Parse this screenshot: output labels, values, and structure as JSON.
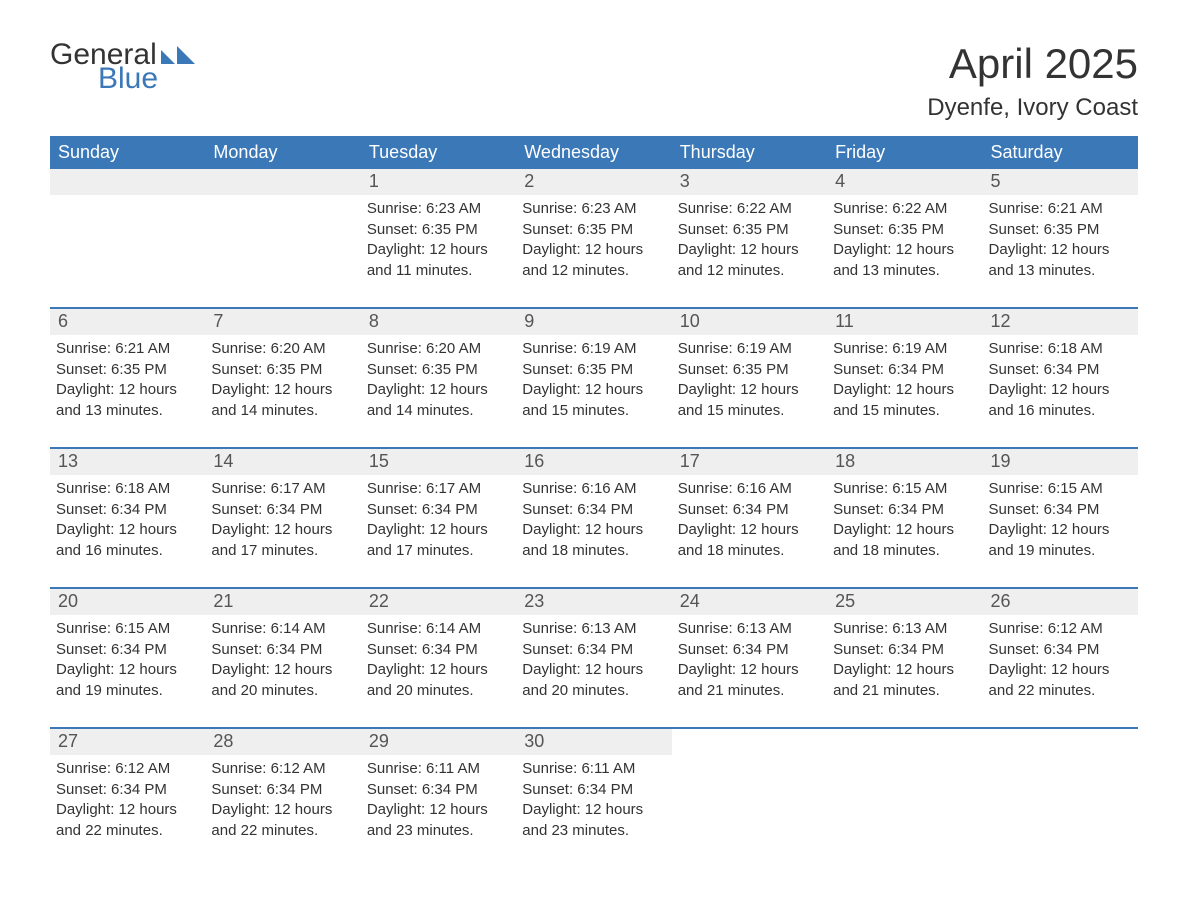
{
  "logo": {
    "line1": "General",
    "line2": "Blue",
    "flag_color": "#3b78b8"
  },
  "title": "April 2025",
  "location": "Dyenfe, Ivory Coast",
  "colors": {
    "header_bg": "#3b78b8",
    "header_text": "#ffffff",
    "daynum_bg": "#efefef",
    "daynum_text": "#555555",
    "body_text": "#333333",
    "row_border": "#3b78b8",
    "page_bg": "#ffffff"
  },
  "fonts": {
    "month_title_pt": 42,
    "location_pt": 24,
    "weekday_pt": 18,
    "daynum_pt": 18,
    "body_pt": 15
  },
  "weekdays": [
    "Sunday",
    "Monday",
    "Tuesday",
    "Wednesday",
    "Thursday",
    "Friday",
    "Saturday"
  ],
  "weeks": [
    [
      null,
      null,
      {
        "n": "1",
        "sunrise": "6:23 AM",
        "sunset": "6:35 PM",
        "daylight": "12 hours and 11 minutes."
      },
      {
        "n": "2",
        "sunrise": "6:23 AM",
        "sunset": "6:35 PM",
        "daylight": "12 hours and 12 minutes."
      },
      {
        "n": "3",
        "sunrise": "6:22 AM",
        "sunset": "6:35 PM",
        "daylight": "12 hours and 12 minutes."
      },
      {
        "n": "4",
        "sunrise": "6:22 AM",
        "sunset": "6:35 PM",
        "daylight": "12 hours and 13 minutes."
      },
      {
        "n": "5",
        "sunrise": "6:21 AM",
        "sunset": "6:35 PM",
        "daylight": "12 hours and 13 minutes."
      }
    ],
    [
      {
        "n": "6",
        "sunrise": "6:21 AM",
        "sunset": "6:35 PM",
        "daylight": "12 hours and 13 minutes."
      },
      {
        "n": "7",
        "sunrise": "6:20 AM",
        "sunset": "6:35 PM",
        "daylight": "12 hours and 14 minutes."
      },
      {
        "n": "8",
        "sunrise": "6:20 AM",
        "sunset": "6:35 PM",
        "daylight": "12 hours and 14 minutes."
      },
      {
        "n": "9",
        "sunrise": "6:19 AM",
        "sunset": "6:35 PM",
        "daylight": "12 hours and 15 minutes."
      },
      {
        "n": "10",
        "sunrise": "6:19 AM",
        "sunset": "6:35 PM",
        "daylight": "12 hours and 15 minutes."
      },
      {
        "n": "11",
        "sunrise": "6:19 AM",
        "sunset": "6:34 PM",
        "daylight": "12 hours and 15 minutes."
      },
      {
        "n": "12",
        "sunrise": "6:18 AM",
        "sunset": "6:34 PM",
        "daylight": "12 hours and 16 minutes."
      }
    ],
    [
      {
        "n": "13",
        "sunrise": "6:18 AM",
        "sunset": "6:34 PM",
        "daylight": "12 hours and 16 minutes."
      },
      {
        "n": "14",
        "sunrise": "6:17 AM",
        "sunset": "6:34 PM",
        "daylight": "12 hours and 17 minutes."
      },
      {
        "n": "15",
        "sunrise": "6:17 AM",
        "sunset": "6:34 PM",
        "daylight": "12 hours and 17 minutes."
      },
      {
        "n": "16",
        "sunrise": "6:16 AM",
        "sunset": "6:34 PM",
        "daylight": "12 hours and 18 minutes."
      },
      {
        "n": "17",
        "sunrise": "6:16 AM",
        "sunset": "6:34 PM",
        "daylight": "12 hours and 18 minutes."
      },
      {
        "n": "18",
        "sunrise": "6:15 AM",
        "sunset": "6:34 PM",
        "daylight": "12 hours and 18 minutes."
      },
      {
        "n": "19",
        "sunrise": "6:15 AM",
        "sunset": "6:34 PM",
        "daylight": "12 hours and 19 minutes."
      }
    ],
    [
      {
        "n": "20",
        "sunrise": "6:15 AM",
        "sunset": "6:34 PM",
        "daylight": "12 hours and 19 minutes."
      },
      {
        "n": "21",
        "sunrise": "6:14 AM",
        "sunset": "6:34 PM",
        "daylight": "12 hours and 20 minutes."
      },
      {
        "n": "22",
        "sunrise": "6:14 AM",
        "sunset": "6:34 PM",
        "daylight": "12 hours and 20 minutes."
      },
      {
        "n": "23",
        "sunrise": "6:13 AM",
        "sunset": "6:34 PM",
        "daylight": "12 hours and 20 minutes."
      },
      {
        "n": "24",
        "sunrise": "6:13 AM",
        "sunset": "6:34 PM",
        "daylight": "12 hours and 21 minutes."
      },
      {
        "n": "25",
        "sunrise": "6:13 AM",
        "sunset": "6:34 PM",
        "daylight": "12 hours and 21 minutes."
      },
      {
        "n": "26",
        "sunrise": "6:12 AM",
        "sunset": "6:34 PM",
        "daylight": "12 hours and 22 minutes."
      }
    ],
    [
      {
        "n": "27",
        "sunrise": "6:12 AM",
        "sunset": "6:34 PM",
        "daylight": "12 hours and 22 minutes."
      },
      {
        "n": "28",
        "sunrise": "6:12 AM",
        "sunset": "6:34 PM",
        "daylight": "12 hours and 22 minutes."
      },
      {
        "n": "29",
        "sunrise": "6:11 AM",
        "sunset": "6:34 PM",
        "daylight": "12 hours and 23 minutes."
      },
      {
        "n": "30",
        "sunrise": "6:11 AM",
        "sunset": "6:34 PM",
        "daylight": "12 hours and 23 minutes."
      },
      null,
      null,
      null
    ]
  ],
  "labels": {
    "sunrise": "Sunrise:",
    "sunset": "Sunset:",
    "daylight": "Daylight:"
  }
}
